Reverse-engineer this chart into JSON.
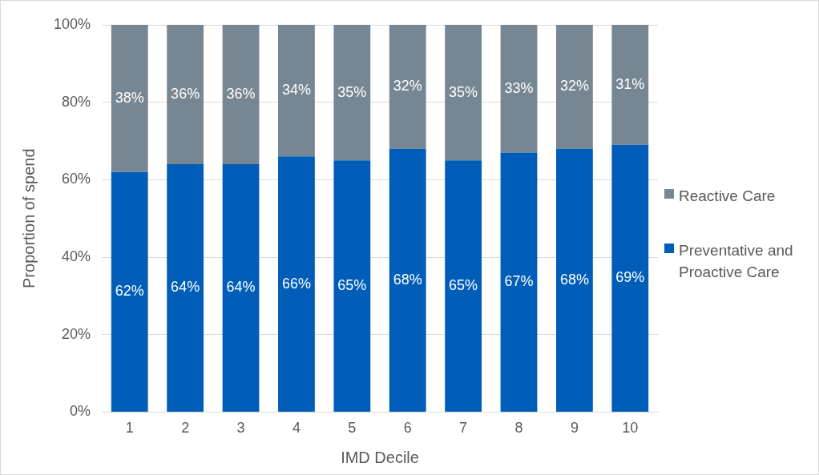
{
  "chart_data": {
    "type": "bar",
    "stacked": true,
    "xlabel": "IMD Decile",
    "ylabel": "Proportion of spend",
    "categories": [
      "1",
      "2",
      "3",
      "4",
      "5",
      "6",
      "7",
      "8",
      "9",
      "10"
    ],
    "series": [
      {
        "name": "Preventative and Proactive Care",
        "color": "#005eb8",
        "values": [
          62,
          64,
          64,
          66,
          65,
          68,
          65,
          67,
          68,
          69
        ],
        "value_labels": [
          "62%",
          "64%",
          "64%",
          "66%",
          "65%",
          "68%",
          "65%",
          "67%",
          "68%",
          "69%"
        ]
      },
      {
        "name": "Reactive Care",
        "color": "#768692",
        "values": [
          38,
          36,
          36,
          34,
          35,
          32,
          35,
          33,
          32,
          31
        ],
        "value_labels": [
          "38%",
          "36%",
          "36%",
          "34%",
          "35%",
          "32%",
          "35%",
          "33%",
          "32%",
          "31%"
        ]
      }
    ],
    "ylim": [
      0,
      100
    ],
    "yticks": [
      {
        "value": 0,
        "label": "0%"
      },
      {
        "value": 20,
        "label": "20%"
      },
      {
        "value": 40,
        "label": "40%"
      },
      {
        "value": 60,
        "label": "60%"
      },
      {
        "value": 80,
        "label": "80%"
      },
      {
        "value": 100,
        "label": "100%"
      }
    ],
    "grid": "y",
    "legend": "right"
  }
}
